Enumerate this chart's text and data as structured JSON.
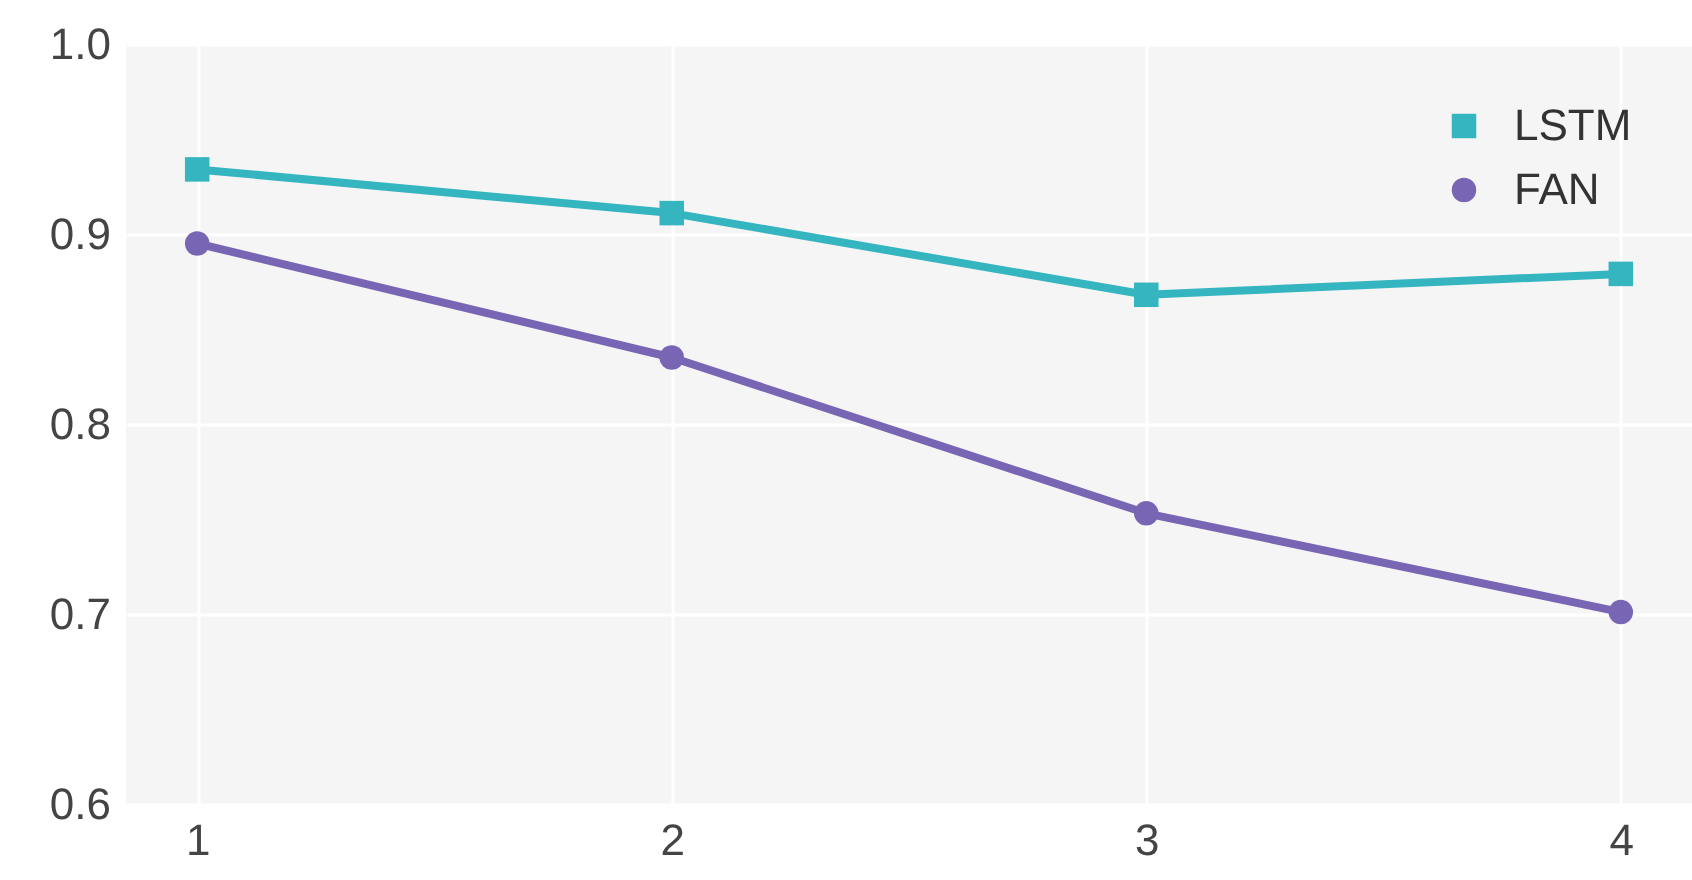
{
  "chart_data": {
    "type": "line",
    "x": [
      1,
      2,
      3,
      4
    ],
    "xlim": [
      0.85,
      4.15
    ],
    "xticks": [
      1,
      2,
      3,
      4
    ],
    "ylim": [
      0.6,
      1.0
    ],
    "yticks": [
      {
        "value": 0.6,
        "label": "0.6"
      },
      {
        "value": 0.7,
        "label": "0.7"
      },
      {
        "value": 0.8,
        "label": "0.8"
      },
      {
        "value": 0.9,
        "label": "0.9"
      },
      {
        "value": 1.0,
        "label": "1.0"
      }
    ],
    "grid": true,
    "legend": "top right",
    "line_style": "solid",
    "series": [
      {
        "name": "LSTM",
        "color": "#35b5c0",
        "marker": "square",
        "values": [
          0.934,
          0.911,
          0.868,
          0.879
        ]
      },
      {
        "name": "FAN",
        "color": "#7865b4",
        "marker": "circle",
        "values": [
          0.895,
          0.835,
          0.753,
          0.701
        ]
      }
    ]
  }
}
